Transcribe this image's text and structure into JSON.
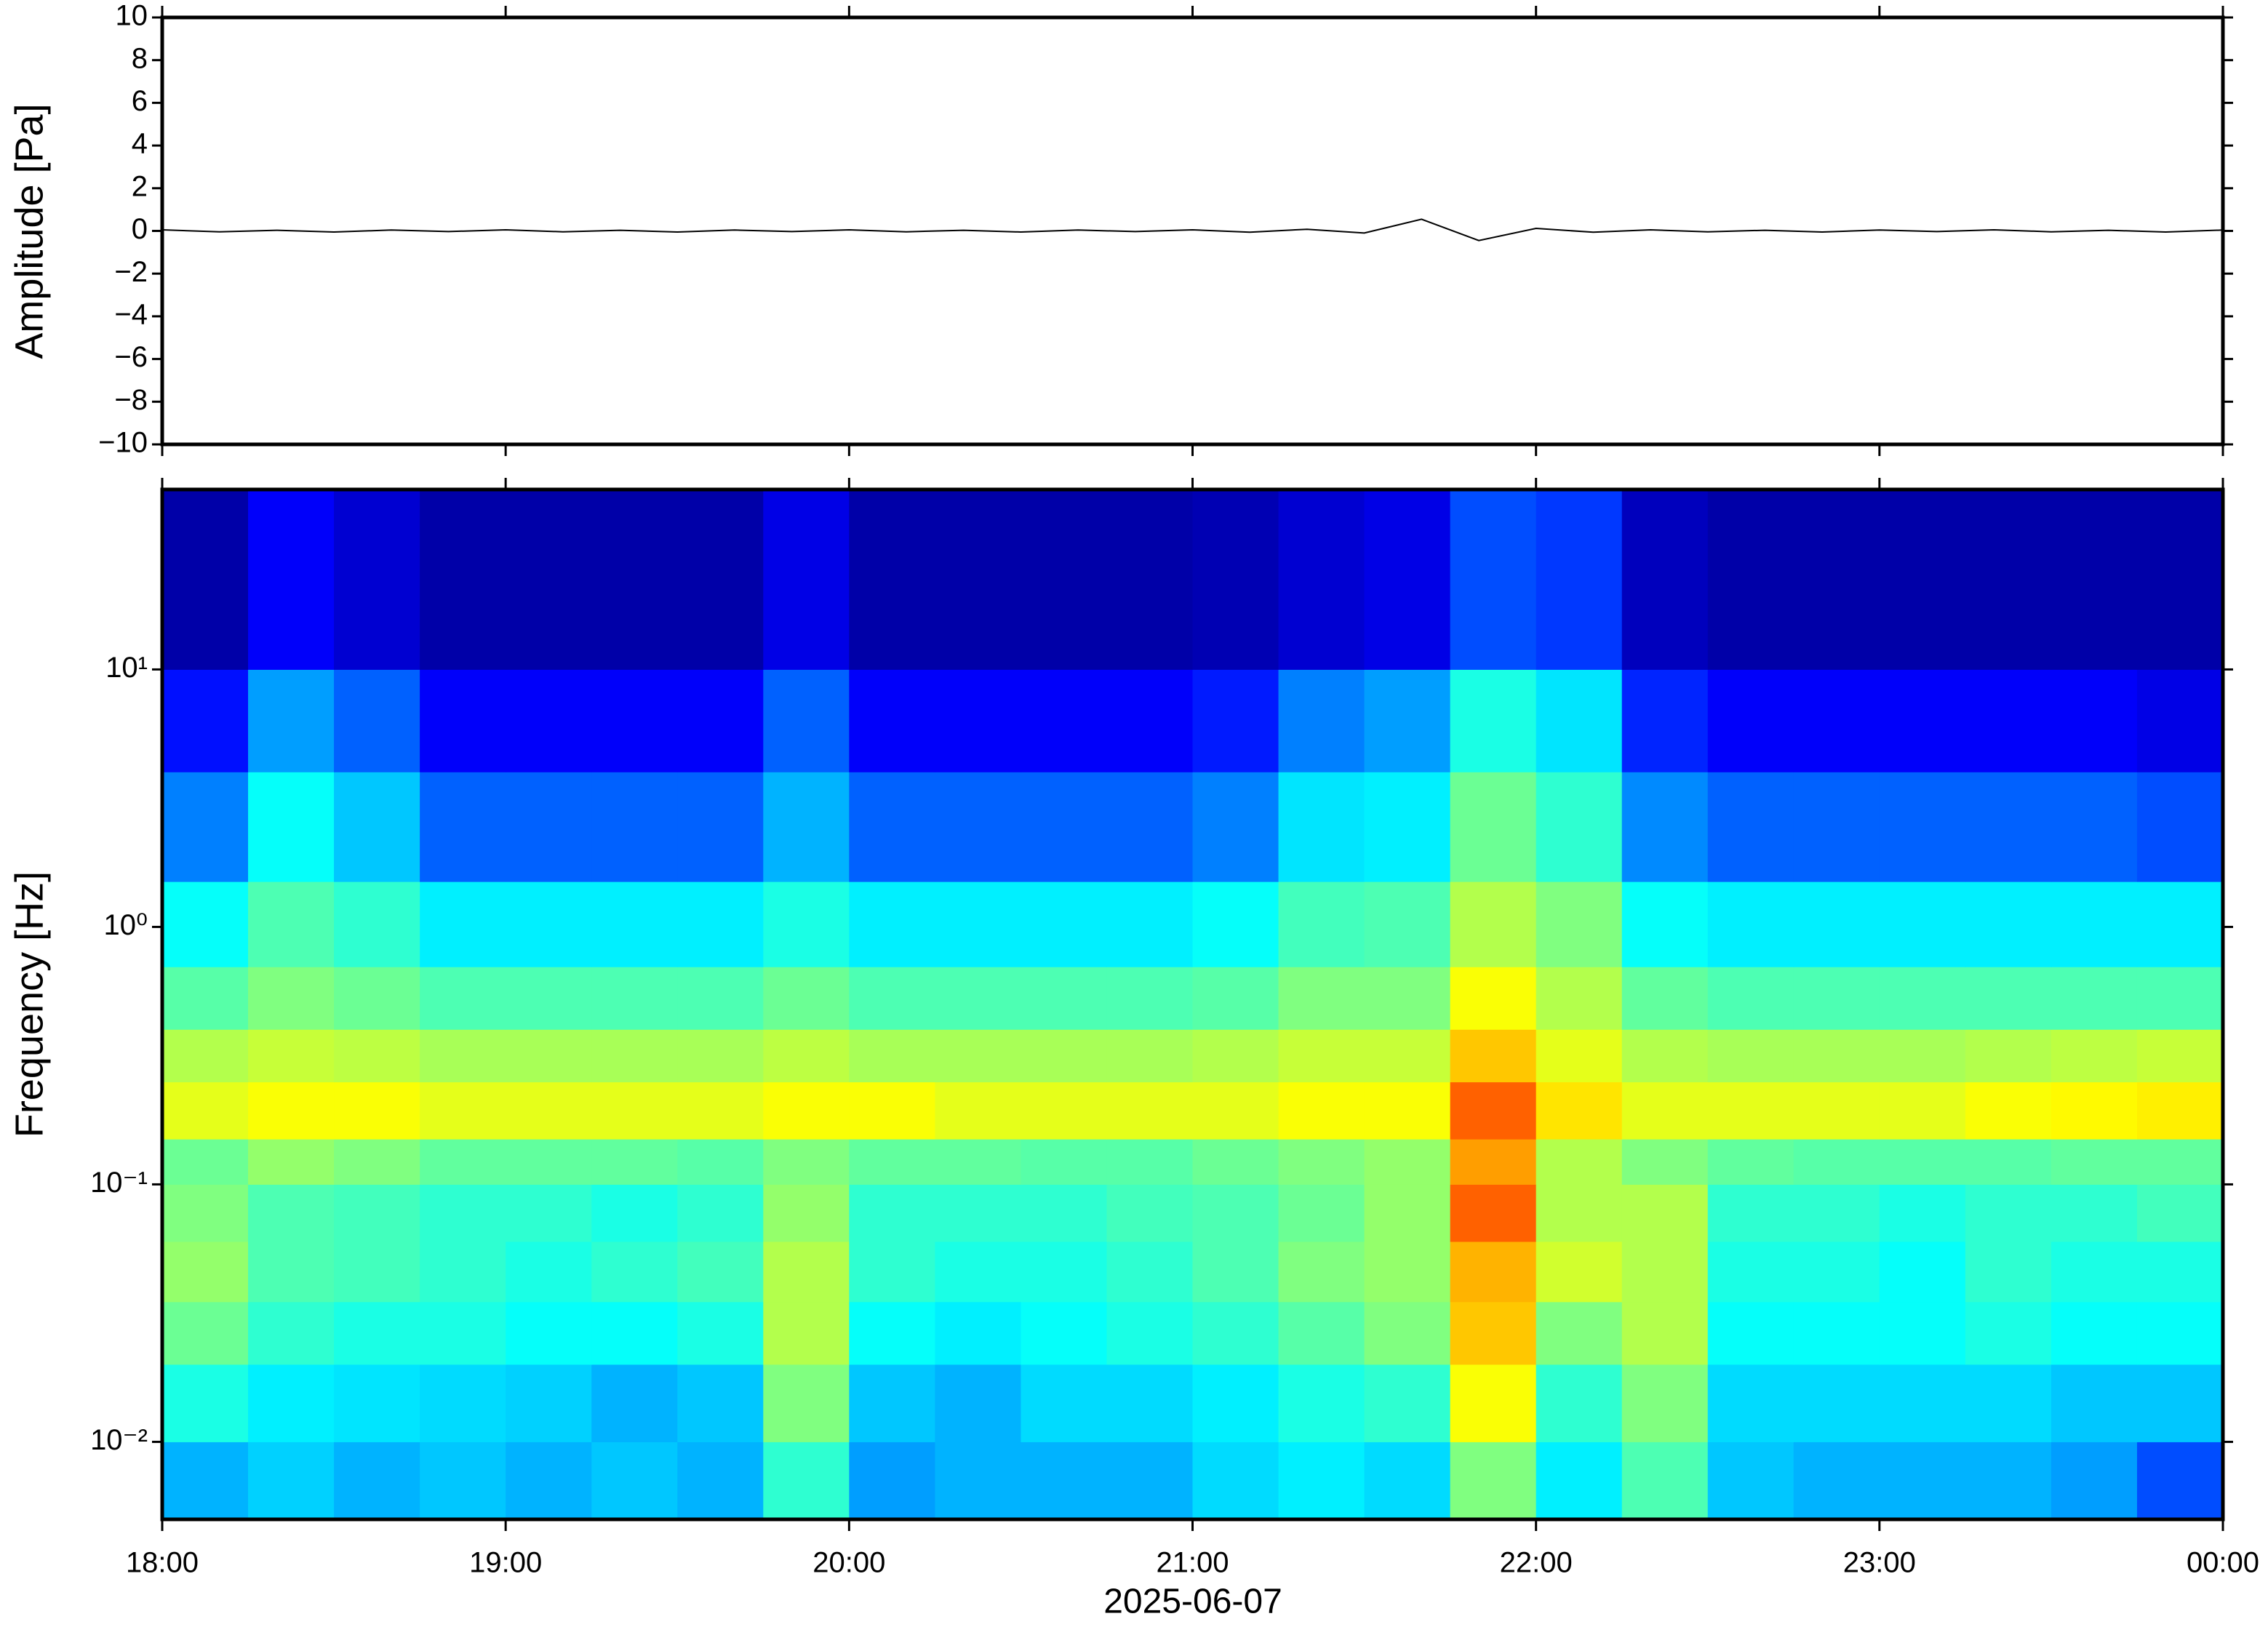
{
  "chart_data": [
    {
      "type": "line",
      "ylabel": "Amplitude [Pa]",
      "x": [
        "18:00",
        "18:10",
        "18:20",
        "18:30",
        "18:40",
        "18:50",
        "19:00",
        "19:10",
        "19:20",
        "19:30",
        "19:40",
        "19:50",
        "20:00",
        "20:10",
        "20:20",
        "20:30",
        "20:40",
        "20:50",
        "21:00",
        "21:10",
        "21:20",
        "21:30",
        "21:40",
        "21:50",
        "22:00",
        "22:10",
        "22:20",
        "22:30",
        "22:40",
        "22:50",
        "23:00",
        "23:10",
        "23:20",
        "23:30",
        "23:40",
        "23:50",
        "00:00"
      ],
      "series": [
        {
          "color": "#000000",
          "values": [
            0.05,
            -0.04,
            0.03,
            -0.05,
            0.04,
            -0.03,
            0.05,
            -0.04,
            0.03,
            -0.05,
            0.04,
            -0.03,
            0.05,
            -0.04,
            0.03,
            -0.05,
            0.04,
            -0.03,
            0.05,
            -0.06,
            0.08,
            -0.1,
            0.55,
            -0.45,
            0.12,
            -0.06,
            0.05,
            -0.04,
            0.03,
            -0.05,
            0.04,
            -0.03,
            0.05,
            -0.04,
            0.03,
            -0.05,
            0.04
          ]
        }
      ],
      "xlim": [
        "18:00",
        "00:00"
      ],
      "ylim": [
        -10,
        10
      ],
      "yticks": [
        {
          "value": -10,
          "label": "−10"
        },
        {
          "value": -8,
          "label": "−8"
        },
        {
          "value": -6,
          "label": "−6"
        },
        {
          "value": -4,
          "label": "−4"
        },
        {
          "value": -2,
          "label": "−2"
        },
        0,
        2,
        4,
        6,
        8,
        10
      ]
    },
    {
      "type": "heatmap",
      "ylabel": "Frequency [Hz]",
      "xlabel": "2025-06-07",
      "colormap": "jet",
      "log_y": true,
      "x": [
        "18:00",
        "18:15",
        "18:30",
        "18:45",
        "19:00",
        "19:15",
        "19:30",
        "19:45",
        "20:00",
        "20:15",
        "20:30",
        "20:45",
        "21:00",
        "21:15",
        "21:30",
        "21:45",
        "22:00",
        "22:15",
        "22:30",
        "22:45",
        "23:00",
        "23:15",
        "23:30",
        "23:45",
        "00:00"
      ],
      "y": [
        0.005,
        0.01,
        0.02,
        0.035,
        0.06,
        0.1,
        0.15,
        0.25,
        0.4,
        0.7,
        1.5,
        4,
        10,
        50
      ],
      "z": [
        [
          0.3,
          0.33,
          0.3,
          0.32,
          0.3,
          0.32,
          0.3,
          0.42,
          0.28,
          0.3,
          0.3,
          0.3,
          0.34,
          0.36,
          0.34,
          0.5,
          0.36,
          0.45,
          0.32,
          0.3,
          0.3,
          0.3,
          0.28,
          0.2
        ],
        [
          0.4,
          0.36,
          0.35,
          0.34,
          0.33,
          0.3,
          0.32,
          0.5,
          0.32,
          0.3,
          0.34,
          0.34,
          0.36,
          0.4,
          0.42,
          0.62,
          0.42,
          0.5,
          0.34,
          0.34,
          0.34,
          0.34,
          0.32,
          0.32
        ],
        [
          0.48,
          0.42,
          0.4,
          0.4,
          0.38,
          0.38,
          0.4,
          0.55,
          0.38,
          0.36,
          0.38,
          0.4,
          0.42,
          0.46,
          0.5,
          0.68,
          0.5,
          0.55,
          0.38,
          0.38,
          0.38,
          0.4,
          0.38,
          0.38
        ],
        [
          0.52,
          0.45,
          0.44,
          0.42,
          0.4,
          0.42,
          0.44,
          0.55,
          0.42,
          0.4,
          0.4,
          0.42,
          0.45,
          0.5,
          0.52,
          0.7,
          0.58,
          0.55,
          0.4,
          0.4,
          0.38,
          0.42,
          0.4,
          0.4
        ],
        [
          0.5,
          0.45,
          0.44,
          0.42,
          0.42,
          0.4,
          0.42,
          0.52,
          0.42,
          0.42,
          0.42,
          0.44,
          0.45,
          0.48,
          0.52,
          0.78,
          0.55,
          0.55,
          0.42,
          0.42,
          0.4,
          0.42,
          0.42,
          0.44
        ],
        [
          0.48,
          0.52,
          0.5,
          0.47,
          0.47,
          0.47,
          0.46,
          0.5,
          0.47,
          0.47,
          0.46,
          0.46,
          0.48,
          0.5,
          0.52,
          0.72,
          0.55,
          0.5,
          0.47,
          0.46,
          0.46,
          0.46,
          0.47,
          0.47
        ],
        [
          0.6,
          0.62,
          0.62,
          0.6,
          0.6,
          0.6,
          0.6,
          0.62,
          0.62,
          0.6,
          0.6,
          0.6,
          0.6,
          0.62,
          0.62,
          0.78,
          0.65,
          0.6,
          0.6,
          0.6,
          0.6,
          0.62,
          0.63,
          0.64
        ],
        [
          0.55,
          0.57,
          0.56,
          0.54,
          0.54,
          0.54,
          0.54,
          0.56,
          0.54,
          0.54,
          0.54,
          0.54,
          0.55,
          0.57,
          0.57,
          0.68,
          0.6,
          0.55,
          0.54,
          0.54,
          0.54,
          0.55,
          0.56,
          0.57
        ],
        [
          0.46,
          0.5,
          0.48,
          0.45,
          0.45,
          0.45,
          0.45,
          0.48,
          0.45,
          0.45,
          0.45,
          0.45,
          0.46,
          0.5,
          0.5,
          0.62,
          0.55,
          0.47,
          0.45,
          0.45,
          0.45,
          0.45,
          0.45,
          0.45
        ],
        [
          0.38,
          0.45,
          0.42,
          0.36,
          0.36,
          0.36,
          0.36,
          0.4,
          0.36,
          0.36,
          0.36,
          0.36,
          0.38,
          0.44,
          0.45,
          0.55,
          0.5,
          0.38,
          0.36,
          0.36,
          0.36,
          0.36,
          0.36,
          0.36
        ],
        [
          0.25,
          0.38,
          0.32,
          0.22,
          0.22,
          0.22,
          0.22,
          0.3,
          0.22,
          0.22,
          0.22,
          0.22,
          0.25,
          0.35,
          0.36,
          0.48,
          0.42,
          0.26,
          0.22,
          0.22,
          0.22,
          0.22,
          0.22,
          0.2
        ],
        [
          0.14,
          0.28,
          0.22,
          0.12,
          0.12,
          0.12,
          0.12,
          0.22,
          0.12,
          0.12,
          0.12,
          0.12,
          0.15,
          0.25,
          0.28,
          0.4,
          0.35,
          0.16,
          0.12,
          0.12,
          0.12,
          0.12,
          0.12,
          0.1
        ],
        [
          0.04,
          0.12,
          0.08,
          0.04,
          0.04,
          0.04,
          0.04,
          0.1,
          0.04,
          0.04,
          0.04,
          0.04,
          0.05,
          0.08,
          0.1,
          0.2,
          0.18,
          0.06,
          0.04,
          0.04,
          0.04,
          0.04,
          0.04,
          0.04
        ]
      ],
      "xlim": [
        "18:00",
        "00:00"
      ],
      "ylim": [
        0.005,
        50
      ],
      "xticks": [
        "18:00",
        "19:00",
        "20:00",
        "21:00",
        "22:00",
        "23:00",
        "00:00"
      ],
      "yticks": [
        {
          "value": 0.01,
          "label": "10⁻²"
        },
        {
          "value": 0.1,
          "label": "10⁻¹"
        },
        {
          "value": 1,
          "label": "10⁰"
        },
        {
          "value": 10,
          "label": "10¹"
        }
      ]
    }
  ]
}
